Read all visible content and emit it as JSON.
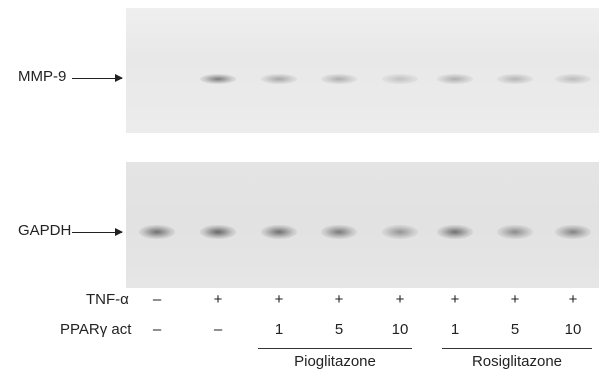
{
  "markers": {
    "mmp9": "MMP-9",
    "gapdh": "GAPDH"
  },
  "rows": {
    "tnf_label": "TNF-α",
    "tnf_values": [
      "–",
      "+",
      "+",
      "+",
      "+",
      "+",
      "+",
      "+"
    ],
    "ppar_label": "PPARγ act",
    "ppar_values": [
      "–",
      "–",
      "1",
      "5",
      "10",
      "1",
      "5",
      "10"
    ]
  },
  "groups": {
    "pioglitazone": "Pioglitazone",
    "rosiglitazone": "Rosiglitazone"
  },
  "bands": {
    "mmp9_intensity": [
      0.0,
      0.75,
      0.5,
      0.45,
      0.3,
      0.45,
      0.4,
      0.35
    ],
    "gapdh_intensity": [
      0.8,
      0.85,
      0.8,
      0.75,
      0.6,
      0.8,
      0.65,
      0.7
    ]
  }
}
